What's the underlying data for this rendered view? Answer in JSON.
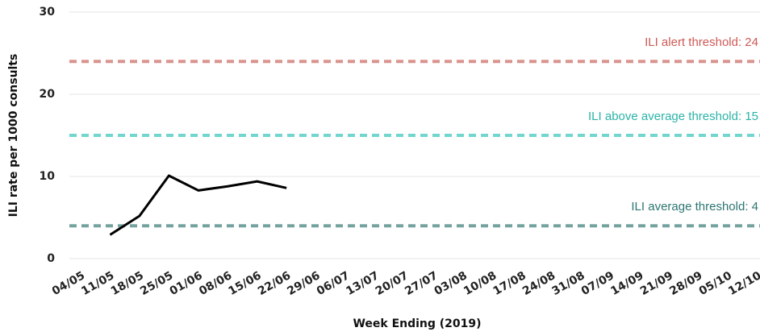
{
  "chart_data": {
    "type": "line",
    "x_label": "Week Ending (2019)",
    "y_label": "ILI rate per 1000 consults",
    "categories": [
      "04/05",
      "11/05",
      "18/05",
      "25/05",
      "01/06",
      "08/06",
      "15/06",
      "22/06",
      "29/06",
      "06/07",
      "13/07",
      "20/07",
      "27/07",
      "03/08",
      "10/08",
      "17/08",
      "24/08",
      "31/08",
      "07/09",
      "14/09",
      "21/09",
      "28/09",
      "05/10",
      "12/10"
    ],
    "series": [
      {
        "name": "ILI rate",
        "color": "#000000",
        "values": [
          null,
          2.9,
          5.2,
          10.1,
          8.3,
          8.8,
          9.4,
          8.6,
          null,
          null,
          null,
          null,
          null,
          null,
          null,
          null,
          null,
          null,
          null,
          null,
          null,
          null,
          null,
          null
        ]
      }
    ],
    "thresholds": [
      {
        "label": "ILI alert threshold: 24",
        "value": 24,
        "color": "#d9948e",
        "label_color": "#cf5a56"
      },
      {
        "label": "ILI above average threshold: 15",
        "value": 15,
        "color": "#72d6ce",
        "label_color": "#2bb3a8"
      },
      {
        "label": "ILI average threshold: 4",
        "value": 4,
        "color": "#74a29f",
        "label_color": "#2c7672"
      }
    ],
    "ylim": [
      0,
      30
    ],
    "yticks": [
      0,
      10,
      20,
      30
    ],
    "grid": true
  }
}
